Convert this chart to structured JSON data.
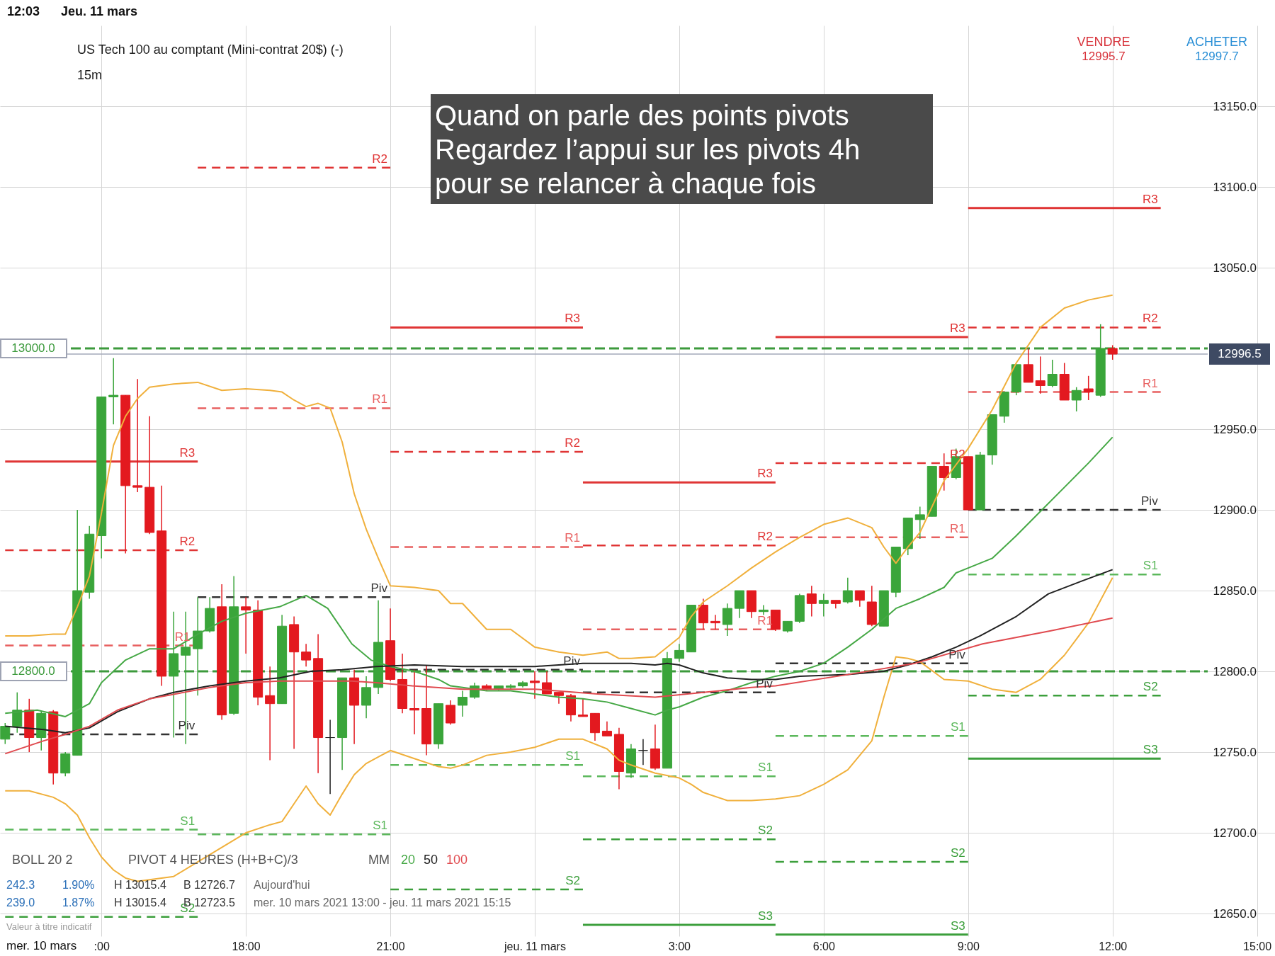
{
  "chart_data": {
    "type": "candlestick",
    "title": "US Tech 100 au comptant (Mini-contrat 20$) (-)",
    "subtitle": "15m",
    "x": [
      "2021-03-10T13:00",
      "2021-03-10T13:15",
      "2021-03-10T13:30",
      "2021-03-10T13:45",
      "2021-03-10T14:00",
      "2021-03-10T14:15",
      "2021-03-10T14:30",
      "2021-03-10T14:45",
      "2021-03-10T15:00",
      "2021-03-10T15:15",
      "2021-03-10T15:30",
      "2021-03-10T15:45",
      "2021-03-10T16:00",
      "2021-03-10T16:15",
      "2021-03-10T16:30",
      "2021-03-10T16:45",
      "2021-03-10T17:00",
      "2021-03-10T17:15",
      "2021-03-10T17:30",
      "2021-03-10T17:45",
      "2021-03-10T18:00",
      "2021-03-10T18:15",
      "2021-03-10T18:30",
      "2021-03-10T18:45",
      "2021-03-10T19:00",
      "2021-03-10T19:15",
      "2021-03-10T19:30",
      "2021-03-10T19:45",
      "2021-03-10T20:00",
      "2021-03-10T20:15",
      "2021-03-10T20:30",
      "2021-03-10T20:45",
      "2021-03-10T21:00",
      "2021-03-10T21:15",
      "2021-03-10T21:30",
      "2021-03-10T21:45",
      "2021-03-10T22:00",
      "2021-03-10T22:15",
      "2021-03-10T22:30",
      "2021-03-10T22:45",
      "2021-03-10T23:00",
      "2021-03-10T23:15",
      "2021-03-10T23:30",
      "2021-03-10T23:45",
      "2021-03-11T00:00",
      "2021-03-11T00:15",
      "2021-03-11T00:30",
      "2021-03-11T00:45",
      "2021-03-11T01:00",
      "2021-03-11T01:15",
      "2021-03-11T01:30",
      "2021-03-11T01:45",
      "2021-03-11T02:00",
      "2021-03-11T02:15",
      "2021-03-11T02:30",
      "2021-03-11T02:45",
      "2021-03-11T03:00",
      "2021-03-11T03:15",
      "2021-03-11T03:30",
      "2021-03-11T03:45",
      "2021-03-11T04:00",
      "2021-03-11T04:15",
      "2021-03-11T04:30",
      "2021-03-11T04:45",
      "2021-03-11T05:00",
      "2021-03-11T05:15",
      "2021-03-11T05:30",
      "2021-03-11T05:45",
      "2021-03-11T06:00",
      "2021-03-11T06:15",
      "2021-03-11T06:30",
      "2021-03-11T06:45",
      "2021-03-11T07:00",
      "2021-03-11T07:15",
      "2021-03-11T07:30",
      "2021-03-11T07:45",
      "2021-03-11T08:00",
      "2021-03-11T08:15",
      "2021-03-11T08:30",
      "2021-03-11T08:45",
      "2021-03-11T09:00",
      "2021-03-11T09:15",
      "2021-03-11T09:30",
      "2021-03-11T09:45",
      "2021-03-11T10:00",
      "2021-03-11T10:15",
      "2021-03-11T10:30",
      "2021-03-11T10:45",
      "2021-03-11T11:00",
      "2021-03-11T11:15",
      "2021-03-11T11:30",
      "2021-03-11T11:45",
      "2021-03-11T12:00"
    ],
    "ohlc": [
      [
        12758,
        12768,
        12755,
        12766
      ],
      [
        12766,
        12787,
        12762,
        12776
      ],
      [
        12776,
        12783,
        12750,
        12759
      ],
      [
        12759,
        12775,
        12751,
        12774
      ],
      [
        12775,
        12776,
        12730,
        12737
      ],
      [
        12737,
        12750,
        12735,
        12749
      ],
      [
        12748,
        12900,
        12748,
        12850
      ],
      [
        12849,
        12890,
        12845,
        12885
      ],
      [
        12884,
        12970,
        12870,
        12970
      ],
      [
        12970,
        12994,
        12953,
        12971
      ],
      [
        12971,
        12971,
        12873,
        12915
      ],
      [
        12915,
        12981,
        12911,
        12914
      ],
      [
        12914,
        12958,
        12885,
        12886
      ],
      [
        12887,
        12915,
        12791,
        12797
      ],
      [
        12797,
        12837,
        12759,
        12811
      ],
      [
        12810,
        12837,
        12755,
        12815
      ],
      [
        12814,
        12846,
        12785,
        12825
      ],
      [
        12825,
        12846,
        12824,
        12839
      ],
      [
        12840,
        12854,
        12770,
        12773
      ],
      [
        12774,
        12859,
        12773,
        12840
      ],
      [
        12840,
        12846,
        12811,
        12838
      ],
      [
        12838,
        12844,
        12779,
        12784
      ],
      [
        12785,
        12803,
        12745,
        12780
      ],
      [
        12780,
        12835,
        12780,
        12828
      ],
      [
        12829,
        12834,
        12752,
        12812
      ],
      [
        12812,
        12817,
        12803,
        12807
      ],
      [
        12808,
        12823,
        12737,
        12759
      ],
      [
        12759,
        12770,
        12724,
        12759
      ],
      [
        12759,
        12796,
        12739,
        12796
      ],
      [
        12796,
        12801,
        12755,
        12779
      ],
      [
        12779,
        12797,
        12771,
        12790
      ],
      [
        12790,
        12844,
        12786,
        12818
      ],
      [
        12819,
        12839,
        12794,
        12795
      ],
      [
        12795,
        12811,
        12774,
        12777
      ],
      [
        12777,
        12801,
        12761,
        12776
      ],
      [
        12777,
        12804,
        12748,
        12755
      ],
      [
        12755,
        12780,
        12752,
        12780
      ],
      [
        12779,
        12782,
        12767,
        12768
      ],
      [
        12779,
        12788,
        12772,
        12784
      ],
      [
        12784,
        12793,
        12783,
        12791
      ],
      [
        12791,
        12792,
        12788,
        12789
      ],
      [
        12789,
        12791,
        12788,
        12791
      ],
      [
        12790,
        12792,
        12789,
        12791
      ],
      [
        12791,
        12794,
        12790,
        12793
      ],
      [
        12794,
        12800,
        12783,
        12793
      ],
      [
        12793,
        12800,
        12786,
        12786
      ],
      [
        12787,
        12787,
        12780,
        12785
      ],
      [
        12785,
        12786,
        12769,
        12773
      ],
      [
        12773,
        12783,
        12772,
        12772
      ],
      [
        12774,
        12774,
        12757,
        12762
      ],
      [
        12763,
        12769,
        12760,
        12760
      ],
      [
        12761,
        12765,
        12727,
        12738
      ],
      [
        12737,
        12755,
        12734,
        12752
      ],
      [
        12751,
        12758,
        12742,
        12751
      ],
      [
        12752,
        12767,
        12739,
        12740
      ],
      [
        12740,
        12812,
        12740,
        12808
      ],
      [
        12808,
        12817,
        12806,
        12813
      ],
      [
        12812,
        12841,
        12812,
        12841
      ],
      [
        12841,
        12845,
        12826,
        12830
      ],
      [
        12831,
        12835,
        12826,
        12830
      ],
      [
        12829,
        12842,
        12822,
        12839
      ],
      [
        12839,
        12850,
        12833,
        12850
      ],
      [
        12850,
        12850,
        12833,
        12837
      ],
      [
        12837,
        12841,
        12835,
        12838
      ],
      [
        12838,
        12838,
        12825,
        12826
      ],
      [
        12825,
        12831,
        12824,
        12831
      ],
      [
        12831,
        12848,
        12830,
        12847
      ],
      [
        12848,
        12853,
        12834,
        12842
      ],
      [
        12842,
        12848,
        12834,
        12844
      ],
      [
        12844,
        12844,
        12839,
        12842
      ],
      [
        12843,
        12858,
        12842,
        12850
      ],
      [
        12850,
        12850,
        12840,
        12844
      ],
      [
        12843,
        12853,
        12828,
        12829
      ],
      [
        12828,
        12850,
        12828,
        12850
      ],
      [
        12849,
        12877,
        12846,
        12877
      ],
      [
        12876,
        12895,
        12872,
        12895
      ],
      [
        12894,
        12902,
        12882,
        12897
      ],
      [
        12896,
        12927,
        12896,
        12927
      ],
      [
        12927,
        12935,
        12912,
        12920
      ],
      [
        12920,
        12938,
        12919,
        12933
      ],
      [
        12933,
        12933,
        12900,
        12900
      ],
      [
        12900,
        12936,
        12900,
        12934
      ],
      [
        12934,
        12959,
        12928,
        12959
      ],
      [
        12958,
        12973,
        12954,
        12973
      ],
      [
        12973,
        12990,
        12971,
        12990
      ],
      [
        12990,
        13000,
        12979,
        12979
      ],
      [
        12980,
        12995,
        12972,
        12977
      ],
      [
        12977,
        12993,
        12976,
        12984
      ],
      [
        12984,
        12991,
        12968,
        12968
      ],
      [
        12968,
        12976,
        12961,
        12974
      ],
      [
        12975,
        12983,
        12968,
        12973
      ],
      [
        12971,
        13015,
        12970,
        13000
      ],
      [
        13000,
        13002,
        12993,
        12996.5
      ]
    ],
    "colors": [
      "#3aa53a",
      "#3aa53a",
      "#e3191f",
      "#3aa53a",
      "#e3191f",
      "#3aa53a",
      "#3aa53a",
      "#3aa53a",
      "#3aa53a",
      "#3aa53a",
      "#e3191f",
      "#e3191f",
      "#e3191f",
      "#e3191f",
      "#3aa53a",
      "#3aa53a",
      "#3aa53a",
      "#3aa53a",
      "#e3191f",
      "#3aa53a",
      "#e3191f",
      "#e3191f",
      "#e3191f",
      "#3aa53a",
      "#e3191f",
      "#e3191f",
      "#e3191f",
      "#222222",
      "#3aa53a",
      "#e3191f",
      "#3aa53a",
      "#3aa53a",
      "#e3191f",
      "#e3191f",
      "#e3191f",
      "#e3191f",
      "#3aa53a",
      "#e3191f",
      "#3aa53a",
      "#3aa53a",
      "#e3191f",
      "#3aa53a",
      "#3aa53a",
      "#3aa53a",
      "#e3191f",
      "#e3191f",
      "#e3191f",
      "#e3191f",
      "#e3191f",
      "#e3191f",
      "#e3191f",
      "#e3191f",
      "#3aa53a",
      "#222222",
      "#e3191f",
      "#3aa53a",
      "#3aa53a",
      "#3aa53a",
      "#e3191f",
      "#e3191f",
      "#3aa53a",
      "#3aa53a",
      "#e3191f",
      "#3aa53a",
      "#e3191f",
      "#3aa53a",
      "#3aa53a",
      "#e3191f",
      "#3aa53a",
      "#e3191f",
      "#3aa53a",
      "#e3191f",
      "#e3191f",
      "#3aa53a",
      "#3aa53a",
      "#3aa53a",
      "#3aa53a",
      "#3aa53a",
      "#e3191f",
      "#3aa53a",
      "#e3191f",
      "#3aa53a",
      "#3aa53a",
      "#3aa53a",
      "#3aa53a",
      "#e3191f",
      "#e3191f",
      "#3aa53a",
      "#e3191f",
      "#3aa53a",
      "#e3191f",
      "#3aa53a",
      "#e3191f"
    ],
    "series": [
      {
        "type": "line",
        "color": "#f0b03c",
        "x": [
          "2021-03-10T13:00",
          "2021-03-10T13:30",
          "2021-03-10T14:00",
          "2021-03-10T14:15",
          "2021-03-10T14:30",
          "2021-03-10T14:45",
          "2021-03-10T15:00",
          "2021-03-10T15:15",
          "2021-03-10T15:30",
          "2021-03-10T15:45",
          "2021-03-10T16:00",
          "2021-03-10T16:30",
          "2021-03-10T17:00",
          "2021-03-10T17:30",
          "2021-03-10T18:00",
          "2021-03-10T18:30",
          "2021-03-10T18:45",
          "2021-03-10T19:00",
          "2021-03-10T19:15",
          "2021-03-10T19:30",
          "2021-03-10T19:45",
          "2021-03-10T20:00",
          "2021-03-10T20:15",
          "2021-03-10T20:30",
          "2021-03-10T20:45",
          "2021-03-10T21:00",
          "2021-03-10T21:30",
          "2021-03-10T22:00",
          "2021-03-10T22:15",
          "2021-03-10T22:30",
          "2021-03-10T23:00",
          "2021-03-10T23:30",
          "2021-03-11T00:00",
          "2021-03-11T00:30",
          "2021-03-11T01:00",
          "2021-03-11T01:30",
          "2021-03-11T01:45",
          "2021-03-11T02:00",
          "2021-03-11T02:30",
          "2021-03-11T03:00",
          "2021-03-11T03:15",
          "2021-03-11T03:30",
          "2021-03-11T04:00",
          "2021-03-11T04:30",
          "2021-03-11T05:00",
          "2021-03-11T05:30",
          "2021-03-11T06:00",
          "2021-03-11T06:30",
          "2021-03-11T07:00",
          "2021-03-11T07:15",
          "2021-03-11T07:30",
          "2021-03-11T07:45",
          "2021-03-11T08:00",
          "2021-03-11T08:30",
          "2021-03-11T09:00",
          "2021-03-11T09:30",
          "2021-03-11T10:00",
          "2021-03-11T10:30",
          "2021-03-11T11:00",
          "2021-03-11T11:30",
          "2021-03-11T12:00"
        ],
        "values": [
          12822,
          12822,
          12823,
          12823,
          12840,
          12859,
          12898,
          12940,
          12958,
          12969,
          12976,
          12978,
          12979,
          12974,
          12975,
          12974,
          12973,
          12968,
          12964,
          12966,
          12963,
          12942,
          12910,
          12888,
          12870,
          12853,
          12852,
          12850,
          12842,
          12842,
          12826,
          12826,
          12815,
          12812,
          12810,
          12812,
          12808,
          12808,
          12809,
          12821,
          12834,
          12843,
          12853,
          12864,
          12874,
          12883,
          12891,
          12895,
          12889,
          12877,
          12867,
          12877,
          12886,
          12918,
          12938,
          12962,
          12991,
          13013,
          13025,
          13030,
          13033
        ]
      },
      {
        "type": "line",
        "color": "#f0b03c",
        "x": [
          "2021-03-10T13:00",
          "2021-03-10T13:30",
          "2021-03-10T14:00",
          "2021-03-10T14:15",
          "2021-03-10T14:30",
          "2021-03-10T14:45",
          "2021-03-10T15:00",
          "2021-03-10T15:15",
          "2021-03-10T15:30",
          "2021-03-10T15:45",
          "2021-03-10T16:00",
          "2021-03-10T16:30",
          "2021-03-10T17:00",
          "2021-03-10T17:30",
          "2021-03-10T18:00",
          "2021-03-10T18:30",
          "2021-03-10T18:45",
          "2021-03-10T19:00",
          "2021-03-10T19:15",
          "2021-03-10T19:30",
          "2021-03-10T19:45",
          "2021-03-10T20:00",
          "2021-03-10T20:15",
          "2021-03-10T20:30",
          "2021-03-10T20:45",
          "2021-03-10T21:00",
          "2021-03-10T21:30",
          "2021-03-10T22:00",
          "2021-03-10T22:15",
          "2021-03-10T22:30",
          "2021-03-10T23:00",
          "2021-03-10T23:30",
          "2021-03-11T00:00",
          "2021-03-11T00:30",
          "2021-03-11T01:00",
          "2021-03-11T01:30",
          "2021-03-11T01:45",
          "2021-03-11T02:00",
          "2021-03-11T02:30",
          "2021-03-11T03:00",
          "2021-03-11T03:15",
          "2021-03-11T03:30",
          "2021-03-11T04:00",
          "2021-03-11T04:30",
          "2021-03-11T05:00",
          "2021-03-11T05:30",
          "2021-03-11T06:00",
          "2021-03-11T06:30",
          "2021-03-11T07:00",
          "2021-03-11T07:15",
          "2021-03-11T07:30",
          "2021-03-11T07:45",
          "2021-03-11T08:00",
          "2021-03-11T08:30",
          "2021-03-11T09:00",
          "2021-03-11T09:30",
          "2021-03-11T10:00",
          "2021-03-11T10:30",
          "2021-03-11T11:00",
          "2021-03-11T11:30",
          "2021-03-11T12:00"
        ],
        "values": [
          12726,
          12726,
          12722,
          12718,
          12711,
          12697,
          12685,
          12677,
          12672,
          12670,
          12671,
          12673,
          12682,
          12691,
          12700,
          12705,
          12707,
          12718,
          12729,
          12718,
          12711,
          12724,
          12736,
          12743,
          12747,
          12751,
          12746,
          12741,
          12740,
          12742,
          12748,
          12750,
          12753,
          12758,
          12758,
          12752,
          12745,
          12742,
          12737,
          12734,
          12730,
          12725,
          12720,
          12720,
          12721,
          12723,
          12730,
          12739,
          12757,
          12784,
          12809,
          12808,
          12806,
          12795,
          12794,
          12789,
          12787,
          12795,
          12810,
          12830,
          12858
        ]
      },
      {
        "name": "20",
        "type": "line",
        "color": "#45a845",
        "x": [
          "2021-03-10T13:00",
          "2021-03-10T13:40",
          "2021-03-10T14:15",
          "2021-03-10T14:45",
          "2021-03-10T15:00",
          "2021-03-10T15:30",
          "2021-03-10T16:00",
          "2021-03-10T16:30",
          "2021-03-10T17:00",
          "2021-03-10T17:30",
          "2021-03-10T18:00",
          "2021-03-10T18:42",
          "2021-03-10T19:15",
          "2021-03-10T19:42",
          "2021-03-10T20:12",
          "2021-03-10T20:36",
          "2021-03-10T21:00",
          "2021-03-10T21:30",
          "2021-03-10T22:00",
          "2021-03-10T22:15",
          "2021-03-10T22:30",
          "2021-03-10T23:00",
          "2021-03-10T23:30",
          "2021-03-11T00:00",
          "2021-03-11T00:30",
          "2021-03-11T01:00",
          "2021-03-11T01:30",
          "2021-03-11T02:00",
          "2021-03-11T02:30",
          "2021-03-11T02:45",
          "2021-03-11T03:00",
          "2021-03-11T03:30",
          "2021-03-11T04:00",
          "2021-03-11T04:30",
          "2021-03-11T05:00",
          "2021-03-11T05:30",
          "2021-03-11T06:00",
          "2021-03-11T06:30",
          "2021-03-11T07:00",
          "2021-03-11T07:30",
          "2021-03-11T08:00",
          "2021-03-11T08:30",
          "2021-03-11T08:45",
          "2021-03-11T09:00",
          "2021-03-11T09:30",
          "2021-03-11T10:00",
          "2021-03-11T10:30",
          "2021-03-11T11:00",
          "2021-03-11T11:30",
          "2021-03-11T12:00"
        ],
        "values": [
          12774,
          12776,
          12772,
          12780,
          12793,
          12807,
          12814,
          12814,
          12823,
          12831,
          12836,
          12840,
          12847,
          12839,
          12817,
          12807,
          12803,
          12800,
          12795,
          12791,
          12790,
          12788,
          12788,
          12786,
          12784,
          12783,
          12781,
          12777,
          12773,
          12776,
          12778,
          12784,
          12788,
          12793,
          12797,
          12800,
          12805,
          12815,
          12826,
          12839,
          12845,
          12852,
          12861,
          12864,
          12870,
          12884,
          12899,
          12914,
          12929,
          12945
        ]
      },
      {
        "name": "50",
        "type": "line",
        "color": "#222222",
        "x": [
          "2021-03-10T13:00",
          "2021-03-10T13:48",
          "2021-03-10T14:15",
          "2021-03-10T14:45",
          "2021-03-10T15:20",
          "2021-03-10T16:00",
          "2021-03-10T16:30",
          "2021-03-10T17:15",
          "2021-03-10T18:00",
          "2021-03-10T18:42",
          "2021-03-10T19:21",
          "2021-03-10T20:00",
          "2021-03-10T20:42",
          "2021-03-10T21:30",
          "2021-03-10T22:30",
          "2021-03-11T00:00",
          "2021-03-11T00:30",
          "2021-03-11T01:00",
          "2021-03-11T02:00",
          "2021-03-11T02:30",
          "2021-03-11T02:45",
          "2021-03-11T03:00",
          "2021-03-11T03:30",
          "2021-03-11T04:00",
          "2021-03-11T04:30",
          "2021-03-11T05:00",
          "2021-03-11T05:30",
          "2021-03-11T06:30",
          "2021-03-11T07:15",
          "2021-03-11T07:45",
          "2021-03-11T08:15",
          "2021-03-11T08:45",
          "2021-03-11T09:15",
          "2021-03-11T10:00",
          "2021-03-11T10:40",
          "2021-03-11T11:22",
          "2021-03-11T12:00"
        ],
        "values": [
          12766,
          12764,
          12762,
          12765,
          12775,
          12783,
          12787,
          12791,
          12794,
          12796,
          12800,
          12801,
          12803,
          12804,
          12803,
          12803,
          12804,
          12805,
          12805,
          12804,
          12805,
          12804,
          12799,
          12796,
          12795,
          12795,
          12797,
          12798,
          12800,
          12804,
          12809,
          12815,
          12822,
          12834,
          12848,
          12856,
          12863
        ]
      },
      {
        "name": "100",
        "type": "line",
        "color": "#e04a4f",
        "x": [
          "2021-03-10T13:00",
          "2021-03-10T13:48",
          "2021-03-10T14:15",
          "2021-03-10T14:45",
          "2021-03-10T15:20",
          "2021-03-10T16:00",
          "2021-03-10T17:15",
          "2021-03-10T18:00",
          "2021-03-10T18:42",
          "2021-03-10T19:30",
          "2021-03-10T20:12",
          "2021-03-10T20:42",
          "2021-03-10T21:27",
          "2021-03-10T22:30",
          "2021-03-11T00:00",
          "2021-03-11T01:18",
          "2021-03-11T02:30",
          "2021-03-11T03:30",
          "2021-03-11T04:30",
          "2021-03-11T05:00",
          "2021-03-11T06:30",
          "2021-03-11T07:54",
          "2021-03-11T09:18",
          "2021-03-11T10:42",
          "2021-03-11T12:00"
        ],
        "values": [
          12749,
          12757,
          12761,
          12766,
          12776,
          12783,
          12790,
          12793,
          12794,
          12794,
          12794,
          12793,
          12791,
          12789,
          12789,
          12786,
          12784,
          12787,
          12790,
          12791,
          12798,
          12805,
          12817,
          12825,
          12833
        ]
      },
      {
        "name": "R3",
        "type": "line",
        "color": "#e03535",
        "line_style": "solid",
        "x": [
          "2021-03-10T13:00",
          "2021-03-10T17:00",
          null,
          "2021-03-10T21:00",
          "2021-03-11T01:00",
          null,
          "2021-03-11T01:00",
          "2021-03-11T05:00",
          null,
          "2021-03-11T05:00",
          "2021-03-11T09:00",
          null,
          "2021-03-11T09:00",
          "2021-03-11T13:00"
        ],
        "values": [
          12930,
          12930,
          null,
          13013,
          13013,
          null,
          12917,
          12917,
          null,
          13007,
          13007,
          null,
          13087,
          13087
        ]
      },
      {
        "name": "R2",
        "type": "line",
        "color": "#e03535",
        "line_style": "dashed",
        "x": [
          "2021-03-10T13:00",
          "2021-03-10T17:00",
          null,
          "2021-03-10T17:00",
          "2021-03-10T21:00",
          null,
          "2021-03-10T21:00",
          "2021-03-11T01:00",
          null,
          "2021-03-11T01:00",
          "2021-03-11T05:00",
          null,
          "2021-03-11T05:00",
          "2021-03-11T09:00",
          null,
          "2021-03-11T09:00",
          "2021-03-11T13:00"
        ],
        "values": [
          12875,
          12875,
          null,
          13112,
          13112,
          null,
          12936,
          12936,
          null,
          12878,
          12878,
          null,
          12929,
          12929,
          null,
          13013,
          13013
        ]
      },
      {
        "name": "R1",
        "type": "line",
        "color": "#e86060",
        "line_style": "dashed",
        "x": [
          "2021-03-10T13:00",
          "2021-03-10T16:54",
          null,
          "2021-03-10T17:00",
          "2021-03-10T21:00",
          null,
          "2021-03-10T21:00",
          "2021-03-11T01:00",
          null,
          "2021-03-11T01:00",
          "2021-03-11T05:00",
          null,
          "2021-03-11T05:00",
          "2021-03-11T09:00",
          null,
          "2021-03-11T09:00",
          "2021-03-11T13:00"
        ],
        "values": [
          12816,
          12816,
          null,
          12963,
          12963,
          null,
          12877,
          12877,
          null,
          12826,
          12826,
          null,
          12883,
          12883,
          null,
          12973,
          12973
        ]
      },
      {
        "name": "Piv",
        "type": "line",
        "color": "#333333",
        "line_style": "dashed",
        "x": [
          "2021-03-10T13:00",
          "2021-03-10T17:00",
          null,
          "2021-03-10T17:00",
          "2021-03-10T21:00",
          null,
          "2021-03-10T21:06",
          "2021-03-11T01:00",
          null,
          "2021-03-11T01:00",
          "2021-03-11T05:00",
          null,
          "2021-03-11T05:00",
          "2021-03-11T09:00",
          null,
          "2021-03-11T09:00",
          "2021-03-11T13:00"
        ],
        "values": [
          12761,
          12761,
          null,
          12846,
          12846,
          null,
          12801,
          12801,
          null,
          12787,
          12787,
          null,
          12805,
          12805,
          null,
          12900,
          12900
        ]
      },
      {
        "name": "S1",
        "type": "line",
        "color": "#5cb85c",
        "line_style": "dashed",
        "x": [
          "2021-03-10T13:00",
          "2021-03-10T17:00",
          null,
          "2021-03-10T17:00",
          "2021-03-10T21:00",
          null,
          "2021-03-10T21:00",
          "2021-03-11T01:00",
          null,
          "2021-03-11T01:00",
          "2021-03-11T05:00",
          null,
          "2021-03-11T05:00",
          "2021-03-11T09:00",
          null,
          "2021-03-11T09:00",
          "2021-03-11T13:00"
        ],
        "values": [
          12702,
          12702,
          null,
          12699,
          12699,
          null,
          12742,
          12742,
          null,
          12735,
          12735,
          null,
          12760,
          12760,
          null,
          12860,
          12860
        ]
      },
      {
        "name": "S2",
        "type": "line",
        "color": "#3c9f3c",
        "line_style": "dashed",
        "x": [
          "2021-03-10T13:00",
          "2021-03-10T17:00",
          null,
          "2021-03-10T21:00",
          "2021-03-11T01:00",
          null,
          "2021-03-11T01:00",
          "2021-03-11T05:00",
          null,
          "2021-03-11T05:00",
          "2021-03-11T09:00",
          null,
          "2021-03-11T09:00",
          "2021-03-11T13:00"
        ],
        "values": [
          12648,
          12648,
          null,
          12665,
          12665,
          null,
          12696,
          12696,
          null,
          12682,
          12682,
          null,
          12785,
          12785
        ]
      },
      {
        "name": "S3",
        "type": "line",
        "color": "#3c9f3c",
        "line_style": "solid",
        "x": [
          "2021-03-11T01:00",
          "2021-03-11T05:00",
          null,
          "2021-03-11T05:00",
          "2021-03-11T09:00",
          null,
          "2021-03-11T09:00",
          "2021-03-11T13:00"
        ],
        "values": [
          12643,
          12643,
          null,
          12637,
          12637,
          null,
          12746,
          12746
        ]
      }
    ],
    "ref_lines": [
      {
        "axis": "y",
        "value": 12996.5,
        "label": "12996.5",
        "color": "#a3a8ba",
        "line_style": "solid"
      },
      {
        "axis": "y",
        "value": 13000,
        "label": "13000.0",
        "color": "#3c9a3c",
        "line_style": "dashed"
      },
      {
        "axis": "y",
        "value": 12800,
        "label": "12800.0",
        "color": "#3c9a3c",
        "line_style": "dashed"
      }
    ],
    "xlim": [
      "2021-03-10T12:58",
      "2021-03-11T15:18"
    ],
    "ylim": [
      12636,
      13200
    ],
    "xticks": [
      {
        "value": "2021-03-10T15:00",
        "label": ":00"
      },
      {
        "value": "2021-03-10T18:00",
        "label": "18:00"
      },
      {
        "value": "2021-03-10T21:00",
        "label": "21:00"
      },
      {
        "value": "2021-03-11T00:00",
        "label": "jeu. 11 mars"
      },
      {
        "value": "2021-03-11T03:00",
        "label": "3:00"
      },
      {
        "value": "2021-03-11T06:00",
        "label": "6:00"
      },
      {
        "value": "2021-03-11T09:00",
        "label": "9:00"
      },
      {
        "value": "2021-03-11T12:00",
        "label": "12:00"
      },
      {
        "value": "2021-03-11T15:00",
        "label": "15:00"
      }
    ],
    "yticks": [
      {
        "value": 12650,
        "label": "12650.0"
      },
      {
        "value": 12700,
        "label": "12700.0"
      },
      {
        "value": 12750,
        "label": "12750.0"
      },
      {
        "value": 12800,
        "label": "12800.0"
      },
      {
        "value": 12850,
        "label": "12850.0"
      },
      {
        "value": 12900,
        "label": "12900.0"
      },
      {
        "value": 12950,
        "label": "12950.0"
      },
      {
        "value": 13050,
        "label": "13050.0"
      },
      {
        "value": 13100,
        "label": "13100.0"
      },
      {
        "value": 13150,
        "label": "13150.0"
      }
    ],
    "grid": true,
    "legend": "bottom left",
    "annotations": [
      "12:03",
      "Jeu. 11 mars",
      "VENDRE",
      "12995.7",
      "ACHETER",
      "12997.7",
      "Quand on parle des points pivots\nRegardez l’appui sur les pivots 4h\npour se relancer à chaque fois",
      "BOLL 20 2",
      "PIVOT 4 HEURES (H+B+C)/3",
      "MM",
      "242.3",
      "1.90%",
      "H 13015.4",
      "B 12726.7",
      "Aujourd'hui",
      "239.0",
      "1.87%",
      "H 13015.4",
      "B 12723.5",
      "mer. 10 mars 2021 13:00 - jeu. 11 mars 2021 15:15",
      "Valeur à titre indicatif",
      "mer. 10 mars"
    ]
  }
}
